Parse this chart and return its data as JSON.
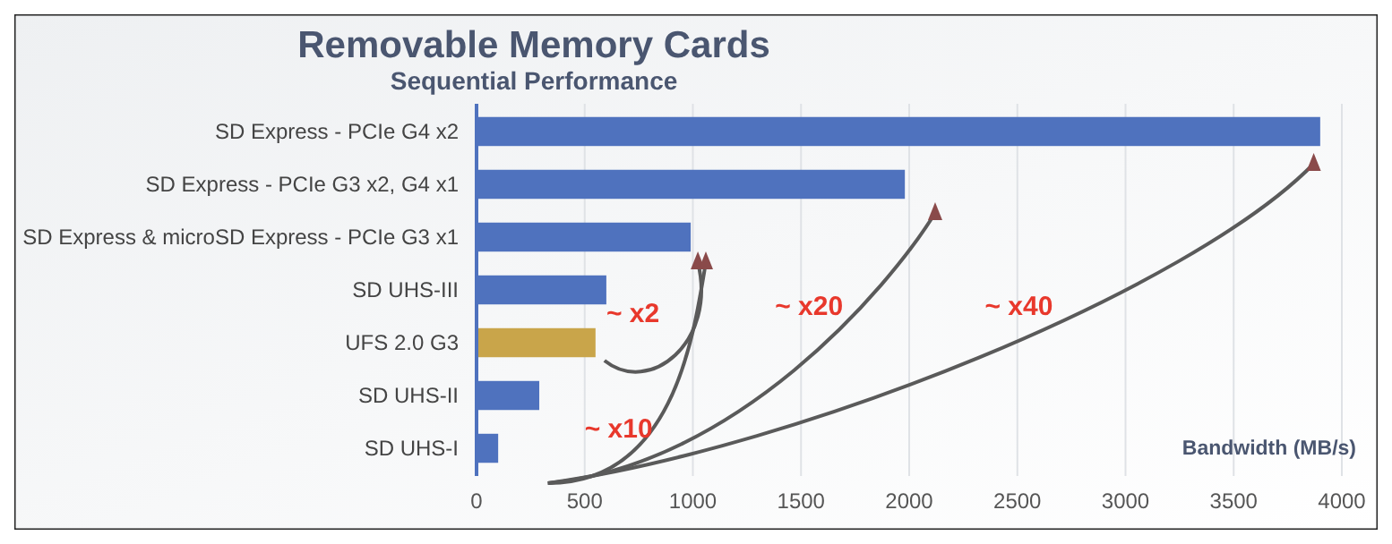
{
  "chart_data": {
    "type": "bar",
    "orientation": "horizontal",
    "title": "Removable Memory Cards",
    "subtitle": "Sequential Performance",
    "xlabel": "Bandwidth (MB/s)",
    "categories": [
      "SD Express - PCIe G4 x2",
      "SD Express - PCIe G3 x2, G4 x1",
      "SD Express & microSD Express - PCIe G3 x1",
      "SD UHS-III",
      "UFS 2.0 G3",
      "SD UHS-II",
      "SD UHS-I"
    ],
    "values": [
      3900,
      1980,
      990,
      600,
      550,
      290,
      100
    ],
    "colors": [
      "#4f72be",
      "#4f72be",
      "#4f72be",
      "#4f72be",
      "#c9a54a",
      "#4f72be",
      "#4f72be"
    ],
    "xlim": [
      0,
      4000
    ],
    "xticks": [
      0,
      500,
      1000,
      1500,
      2000,
      2500,
      3000,
      3500,
      4000
    ],
    "grid": "x",
    "annotations": [
      "~ x2",
      "~ x10",
      "~ x20",
      "~ x40"
    ]
  }
}
